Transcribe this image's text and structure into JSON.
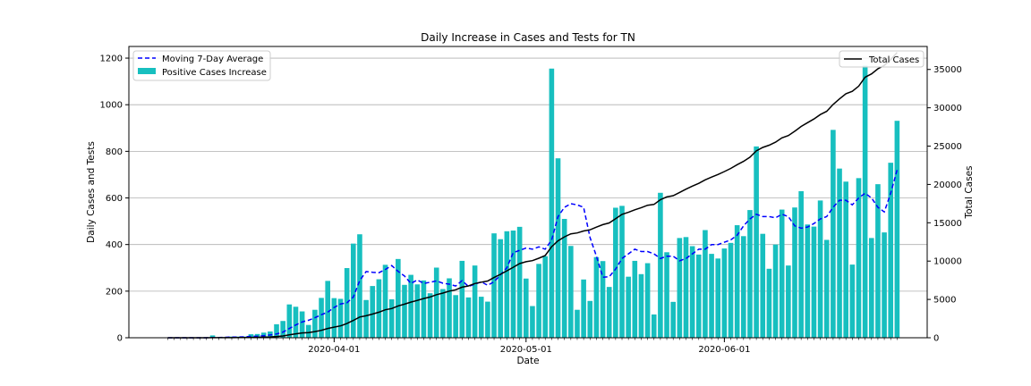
{
  "chart_data": {
    "type": "bar",
    "title": "Daily Increase in Cases and Tests for TN",
    "xlabel": "Date",
    "ylabel": "Daily Cases and Tests",
    "y2label": "Total Cases",
    "ylim": [
      0,
      1250
    ],
    "y2lim": [
      0,
      38000
    ],
    "yticks": [
      0,
      200,
      400,
      600,
      800,
      1000,
      1200
    ],
    "y2ticks": [
      0,
      5000,
      10000,
      15000,
      20000,
      25000,
      30000,
      35000
    ],
    "x_start": "2020-03-06",
    "x_tick_labels": [
      {
        "date": "2020-04-01",
        "label": "2020-04-01"
      },
      {
        "date": "2020-05-01",
        "label": "2020-05-01"
      },
      {
        "date": "2020-06-01",
        "label": "2020-06-01"
      }
    ],
    "grid": "y",
    "legend_left_placement": "top-left",
    "legend_right_placement": "top-right",
    "series": [
      {
        "name": "Positive Cases Increase",
        "kind": "bar",
        "color": "#17bfbf",
        "values": [
          0,
          0,
          0,
          0,
          0,
          0,
          0,
          10,
          0,
          2,
          5,
          5,
          5,
          15,
          16,
          22,
          27,
          58,
          72,
          143,
          133,
          113,
          55,
          120,
          171,
          244,
          170,
          167,
          299,
          404,
          444,
          162,
          222,
          251,
          313,
          165,
          338,
          227,
          270,
          229,
          246,
          191,
          301,
          209,
          255,
          183,
          330,
          173,
          310,
          176,
          155,
          448,
          423,
          457,
          460,
          476,
          254,
          136,
          317,
          350,
          1155,
          770,
          510,
          394,
          120,
          250,
          158,
          346,
          329,
          218,
          558,
          566,
          262,
          330,
          273,
          320,
          100,
          622,
          367,
          154,
          428,
          432,
          393,
          357,
          462,
          360,
          340,
          383,
          407,
          483,
          436,
          548,
          821,
          446,
          296,
          400,
          550,
          310,
          559,
          629,
          486,
          477,
          589,
          420,
          892,
          726,
          670,
          314,
          685,
          1168,
          428,
          659,
          452,
          751,
          931
        ]
      },
      {
        "name": "Moving 7-Day Average",
        "kind": "line",
        "color": "#0000ff",
        "values": [
          0,
          0,
          0,
          0,
          0,
          0,
          0,
          1,
          1,
          2,
          3,
          3,
          4,
          6,
          7,
          9,
          12,
          16,
          24,
          40,
          55,
          68,
          75,
          86,
          99,
          110,
          130,
          145,
          150,
          175,
          245,
          284,
          281,
          279,
          293,
          310,
          285,
          265,
          233,
          248,
          233,
          238,
          244,
          234,
          230,
          222,
          245,
          220,
          230,
          240,
          225,
          240,
          270,
          300,
          365,
          375,
          385,
          380,
          390,
          380,
          420,
          520,
          560,
          575,
          570,
          560,
          430,
          350,
          260,
          262,
          295,
          340,
          360,
          380,
          370,
          370,
          360,
          340,
          350,
          350,
          330,
          340,
          360,
          380,
          380,
          400,
          400,
          410,
          420,
          440,
          480,
          510,
          530,
          520,
          520,
          515,
          530,
          520,
          480,
          470,
          475,
          490,
          510,
          520,
          560,
          590,
          590,
          570,
          600,
          620,
          600,
          560,
          540,
          620,
          720
        ]
      },
      {
        "name": "Total Cases",
        "kind": "line",
        "axis": "right",
        "color": "#000000",
        "values": [
          0,
          0,
          0,
          0,
          0,
          0,
          0,
          10,
          10,
          12,
          17,
          22,
          27,
          42,
          58,
          80,
          107,
          165,
          237,
          380,
          513,
          626,
          681,
          801,
          972,
          1216,
          1386,
          1553,
          1852,
          2256,
          2700,
          2862,
          3084,
          3335,
          3648,
          3813,
          4151,
          4378,
          4648,
          4877,
          5123,
          5314,
          5615,
          5824,
          6079,
          6262,
          6592,
          6765,
          7075,
          7251,
          7406,
          7854,
          8277,
          8734,
          9194,
          9670,
          9924,
          10060,
          10377,
          10727,
          11882,
          12652,
          13162,
          13556,
          13676,
          13926,
          14084,
          14430,
          14759,
          14977,
          15535,
          16101,
          16363,
          16693,
          16966,
          17286,
          17386,
          18008,
          18375,
          18529,
          18957,
          19389,
          19782,
          20139,
          20601,
          20961,
          21301,
          21684,
          22091,
          22574,
          23010,
          23558,
          24379,
          24825,
          25121,
          25521,
          26071,
          26381,
          26940,
          27569,
          28055,
          28532,
          29121,
          29541,
          30433,
          31159,
          31829,
          32143,
          32828,
          33996,
          34424,
          35083,
          35535,
          36286,
          37217
        ]
      }
    ]
  }
}
